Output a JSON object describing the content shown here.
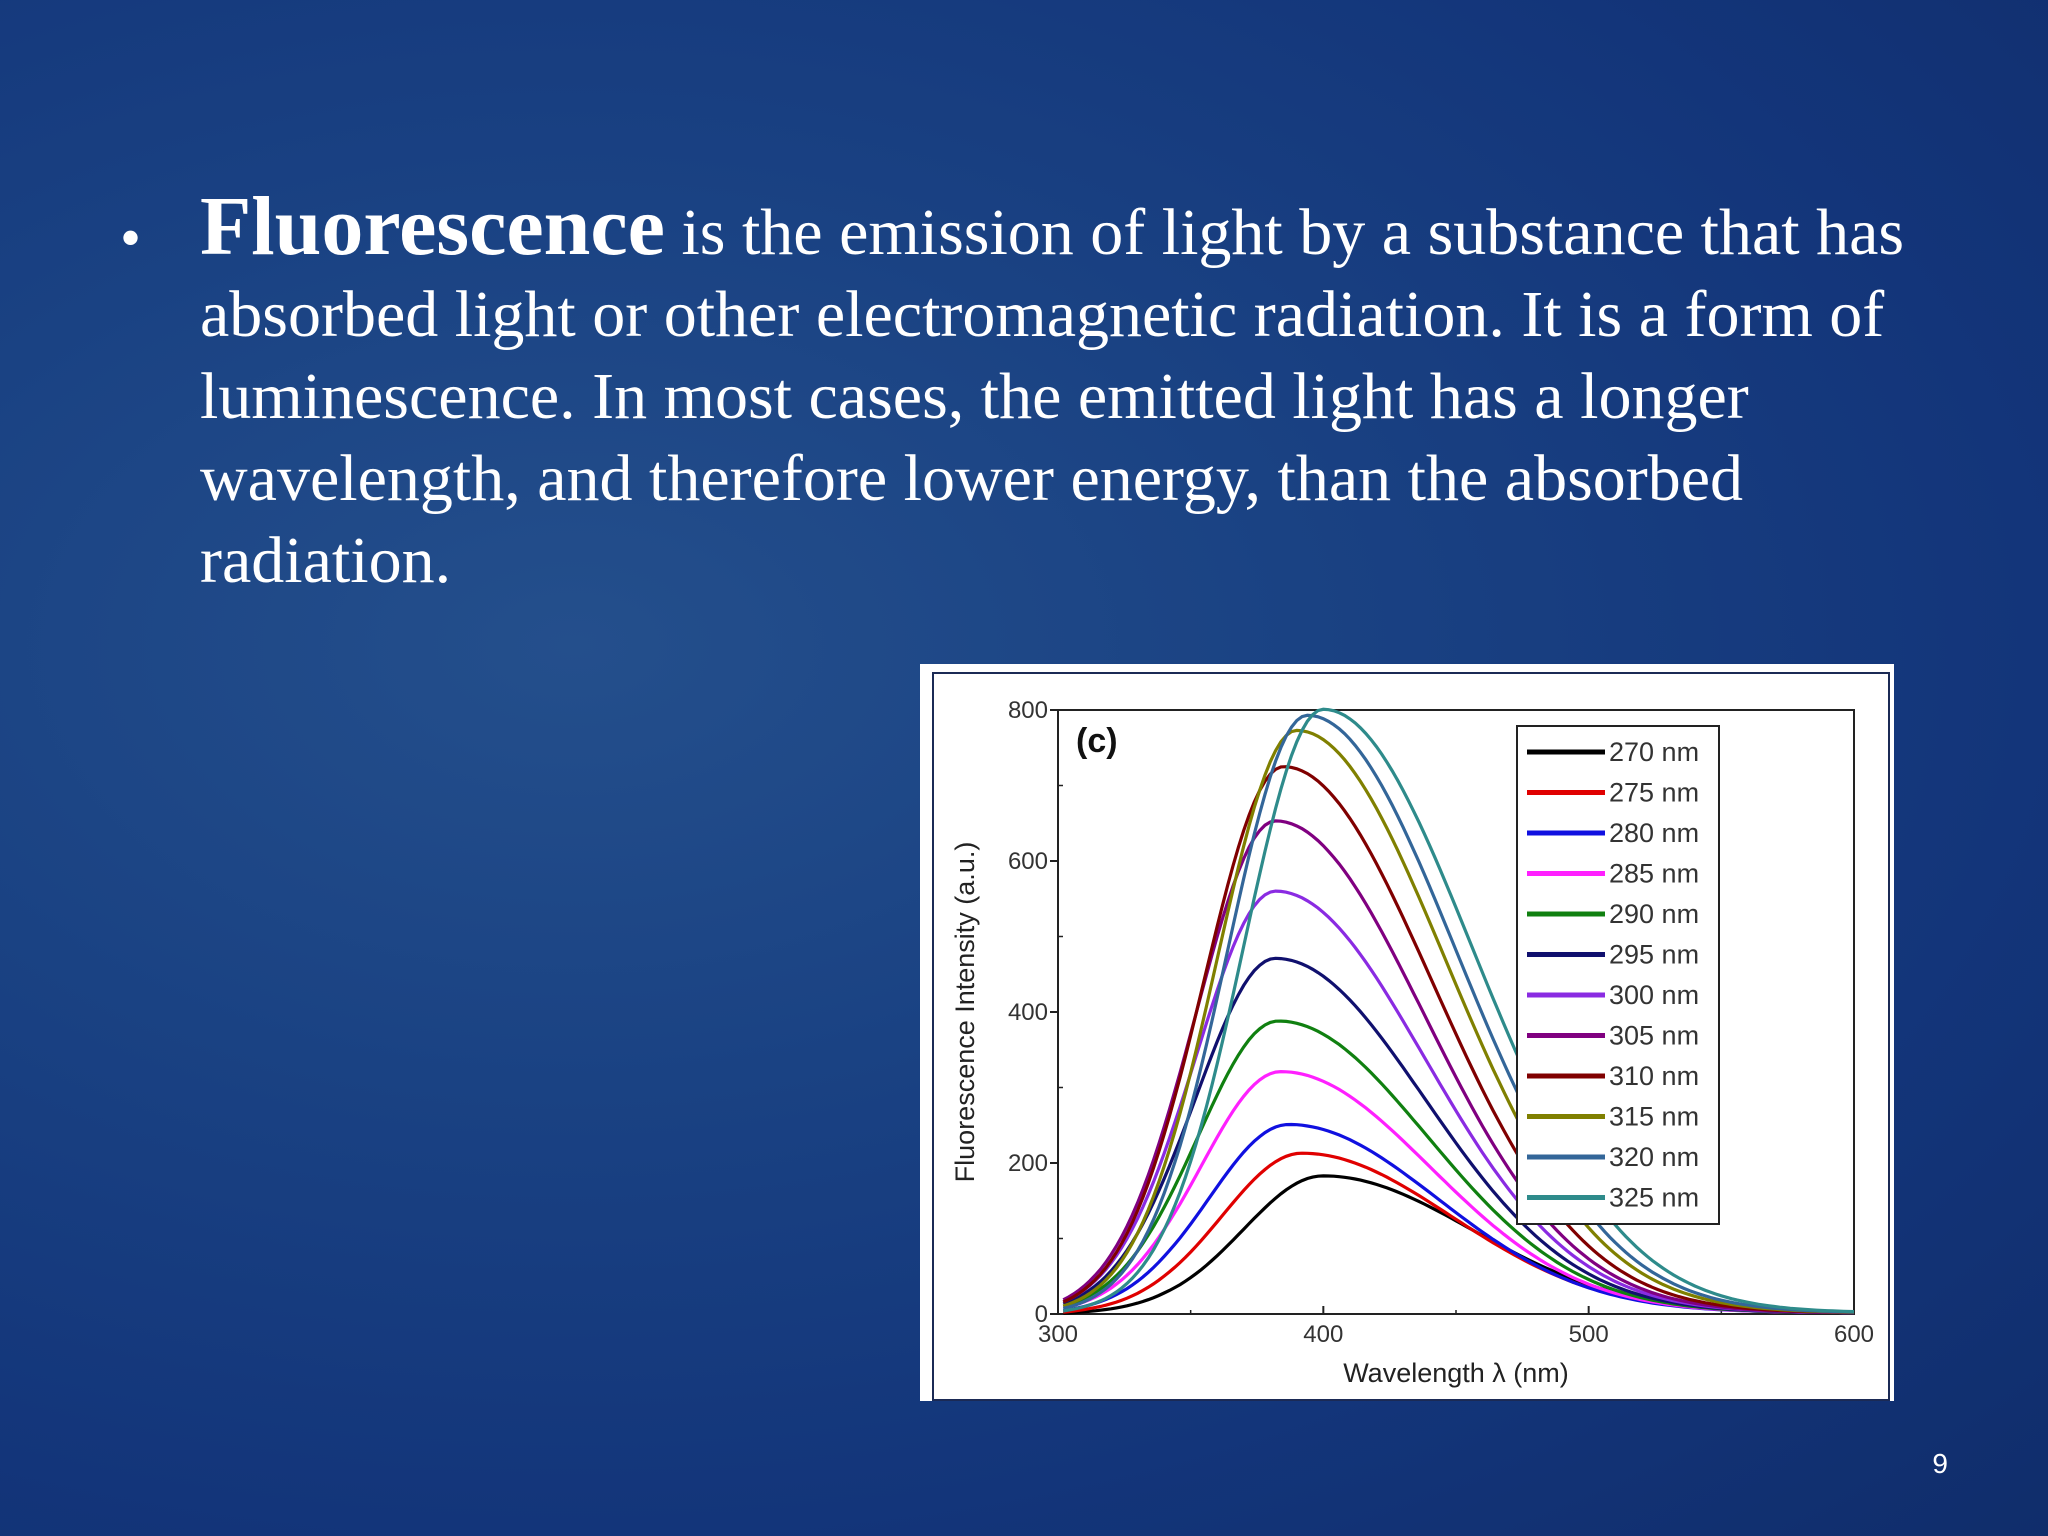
{
  "slide": {
    "bullet": "•",
    "term": "Fluorescence",
    "definition": " is the emission of light by a substance that has absorbed light or other electromagnetic radiation. It is a form of luminescence. In most cases, the emitted light has a longer wavelength, and therefore lower energy, than the absorbed radiation.",
    "page_number": "9"
  },
  "colors": {
    "background": "#13357a",
    "text": "#ffffff"
  },
  "chart_data": {
    "type": "line",
    "panel_label": "(c)",
    "xlabel": "Wavelength λ (nm)",
    "ylabel": "Fluorescence Intensity (a.u.)",
    "xlim": [
      300,
      600
    ],
    "ylim": [
      0,
      800
    ],
    "xticks": [
      300,
      400,
      500,
      600
    ],
    "yticks": [
      0,
      200,
      400,
      600,
      800
    ],
    "legend_position": "top-right",
    "grid": false,
    "series": [
      {
        "name": "270 nm",
        "color": "#000000",
        "peak_x": 400,
        "peak_y": 180
      },
      {
        "name": "275 nm",
        "color": "#e00000",
        "peak_x": 392,
        "peak_y": 210
      },
      {
        "name": "280 nm",
        "color": "#1010e0",
        "peak_x": 387,
        "peak_y": 248
      },
      {
        "name": "285 nm",
        "color": "#ff20ff",
        "peak_x": 384,
        "peak_y": 318
      },
      {
        "name": "290 nm",
        "color": "#108010",
        "peak_x": 383,
        "peak_y": 385
      },
      {
        "name": "295 nm",
        "color": "#10106e",
        "peak_x": 382,
        "peak_y": 468
      },
      {
        "name": "300 nm",
        "color": "#8a2be2",
        "peak_x": 382,
        "peak_y": 557
      },
      {
        "name": "305 nm",
        "color": "#800080",
        "peak_x": 382,
        "peak_y": 650
      },
      {
        "name": "310 nm",
        "color": "#800000",
        "peak_x": 385,
        "peak_y": 722
      },
      {
        "name": "315 nm",
        "color": "#808000",
        "peak_x": 390,
        "peak_y": 770
      },
      {
        "name": "320 nm",
        "color": "#336699",
        "peak_x": 394,
        "peak_y": 790
      },
      {
        "name": "325 nm",
        "color": "#2e8b8b",
        "peak_x": 400,
        "peak_y": 798
      }
    ]
  }
}
